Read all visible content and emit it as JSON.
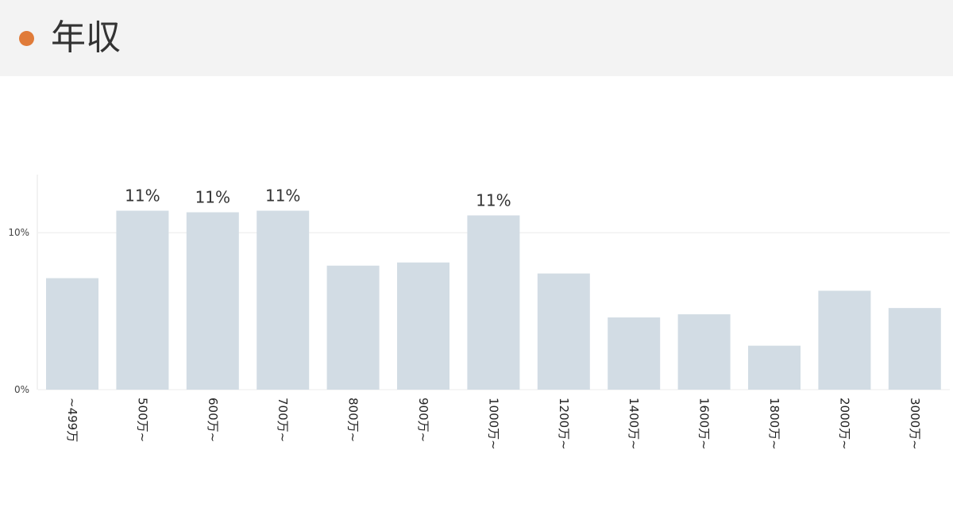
{
  "header": {
    "title": "年収",
    "dot_color": "#e07b39"
  },
  "chart_data": {
    "type": "bar",
    "title": "",
    "xlabel": "",
    "ylabel": "",
    "categories": [
      "~499万",
      "500万~",
      "600万~",
      "700万~",
      "800万~",
      "900万~",
      "1000万~",
      "1200万~",
      "1400万~",
      "1600万~",
      "1800万~",
      "2000万~",
      "3000万~"
    ],
    "values": [
      7.1,
      11.4,
      11.3,
      11.4,
      7.9,
      8.1,
      11.1,
      7.4,
      4.6,
      4.8,
      2.8,
      6.3,
      5.2
    ],
    "data_labels": [
      "",
      "11%",
      "11%",
      "11%",
      "",
      "",
      "11%",
      "",
      "",
      "",
      "",
      "",
      ""
    ],
    "yticks": [
      0,
      10
    ],
    "ytick_labels": [
      "0%",
      "10%"
    ],
    "ylim": [
      0,
      13.7
    ],
    "bar_color": "#d2dce4",
    "grid": true,
    "legend": "none"
  }
}
